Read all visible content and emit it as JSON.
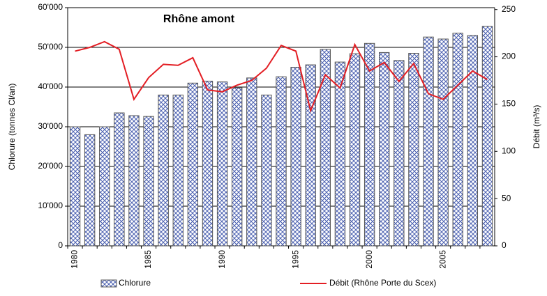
{
  "chart_data": {
    "type": "bar",
    "title": "Rhône amont",
    "y_label": "Chlorure (tonnes Cl/an)",
    "y2_label": "Débit (m³/s)",
    "categories": [
      "1980",
      null,
      null,
      null,
      null,
      "1985",
      null,
      null,
      null,
      null,
      "1990",
      null,
      null,
      null,
      null,
      "1995",
      null,
      null,
      null,
      null,
      "2000",
      null,
      null,
      null,
      null,
      "2005",
      null,
      null,
      null
    ],
    "series": [
      {
        "name": "Chlorure",
        "type": "bar",
        "color": "#3b4fa0",
        "values": [
          30000,
          28000,
          30000,
          33500,
          32800,
          32600,
          38000,
          38000,
          41000,
          41500,
          41300,
          39800,
          42300,
          38000,
          42600,
          45000,
          45600,
          49500,
          46300,
          48400,
          51000,
          48700,
          46700,
          48500,
          52600,
          52100,
          53600,
          53000,
          55300
        ]
      },
      {
        "name": "Débit (Rhône Porte du Scex)",
        "type": "line",
        "color": "#e31e24",
        "axis": "y2",
        "values": [
          206,
          210,
          216,
          208,
          155,
          178,
          192,
          191,
          199,
          165,
          163,
          170,
          175,
          188,
          212,
          206,
          143,
          181,
          167,
          213,
          185,
          194,
          174,
          193,
          161,
          155,
          170,
          185,
          176
        ]
      }
    ],
    "ylim": [
      0,
      60000
    ],
    "yticks": [
      0,
      {
        "value": 10000,
        "label": "10'000"
      },
      {
        "value": 20000,
        "label": "20'000"
      },
      {
        "value": 30000,
        "label": "30'000"
      },
      {
        "value": 40000,
        "label": "40'000"
      },
      {
        "value": 50000,
        "label": "50'000"
      },
      {
        "value": 60000,
        "label": "60'000"
      }
    ],
    "y2lim": [
      0,
      252
    ],
    "y2ticks": [
      0,
      50,
      100,
      150,
      200,
      250
    ],
    "grid": true
  }
}
